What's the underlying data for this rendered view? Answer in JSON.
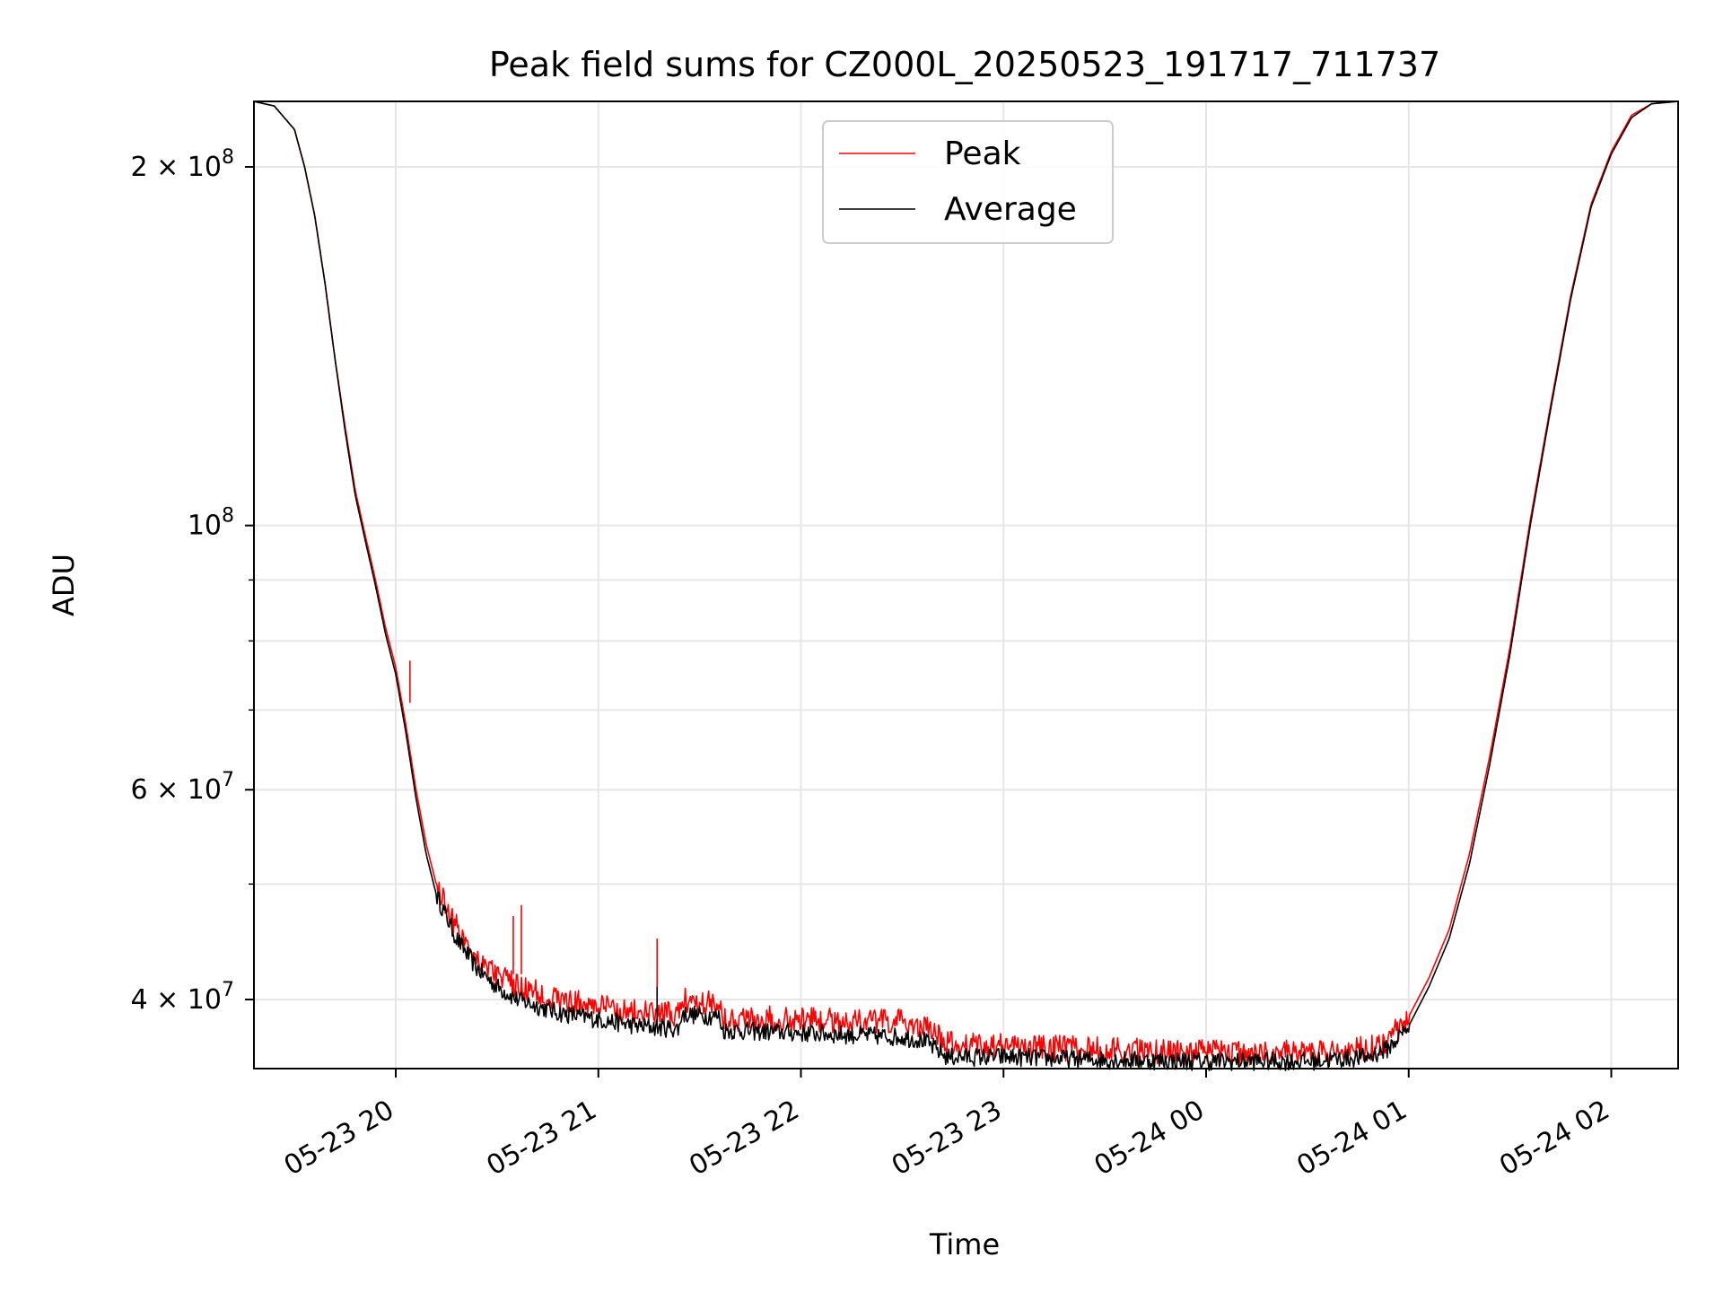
{
  "chart_data": {
    "type": "line",
    "title": "Peak field sums for CZ000L_20250523_191717_711737",
    "xlabel": "Time",
    "ylabel": "ADU",
    "yscale": "log",
    "ylim": [
      35000000,
      227000000
    ],
    "xlim_hours": [
      -0.7,
      6.33
    ],
    "x_ticks": [
      {
        "hour": 0,
        "label": "05-23 20"
      },
      {
        "hour": 1,
        "label": "05-23 21"
      },
      {
        "hour": 2,
        "label": "05-23 22"
      },
      {
        "hour": 3,
        "label": "05-23 23"
      },
      {
        "hour": 4,
        "label": "05-24 00"
      },
      {
        "hour": 5,
        "label": "05-24 01"
      },
      {
        "hour": 6,
        "label": "05-24 02"
      }
    ],
    "y_major_ticks": [
      {
        "value": 40000000,
        "label": "4 × 10",
        "exp": "7"
      },
      {
        "value": 60000000,
        "label": "6 × 10",
        "exp": "7"
      },
      {
        "value": 100000000,
        "label": "10",
        "exp": "8"
      },
      {
        "value": 200000000,
        "label": "2 × 10",
        "exp": "8"
      }
    ],
    "y_minor_ticks": [
      50000000,
      70000000,
      80000000,
      90000000
    ],
    "grid": true,
    "legend_position": "top-center",
    "series": [
      {
        "name": "Average",
        "color": "#000000",
        "x": [
          -0.7,
          -0.6,
          -0.5,
          -0.45,
          -0.4,
          -0.35,
          -0.3,
          -0.25,
          -0.2,
          -0.15,
          -0.1,
          -0.05,
          0.0,
          0.05,
          0.1,
          0.15,
          0.2,
          0.3,
          0.4,
          0.5,
          0.6,
          0.7,
          0.8,
          1.0,
          1.2,
          1.4,
          1.41,
          1.6,
          1.61,
          2.0,
          2.5,
          2.6,
          2.7,
          2.72,
          3.0,
          3.5,
          4.0,
          4.5,
          4.8,
          4.9,
          5.0,
          5.1,
          5.2,
          5.3,
          5.4,
          5.5,
          5.6,
          5.7,
          5.8,
          5.9,
          6.0,
          6.1,
          6.2,
          6.33
        ],
        "values": [
          227000000,
          225000000,
          215000000,
          200000000,
          182000000,
          160000000,
          138000000,
          120000000,
          106000000,
          97000000,
          89000000,
          81000000,
          75000000,
          67000000,
          59000000,
          53000000,
          49000000,
          45000000,
          42500000,
          41000000,
          40000000,
          39500000,
          39000000,
          38500000,
          38000000,
          37800000,
          38900000,
          38700000,
          37700000,
          37500000,
          37200000,
          37000000,
          36000000,
          35800000,
          35800000,
          35600000,
          35500000,
          35500000,
          35800000,
          36400000,
          38000000,
          41000000,
          45000000,
          52000000,
          63000000,
          78000000,
          100000000,
          125000000,
          155000000,
          185000000,
          205000000,
          220000000,
          226000000,
          227000000
        ]
      },
      {
        "name": "Peak",
        "color": "#ff0000",
        "x": [
          -0.7,
          -0.6,
          -0.5,
          -0.45,
          -0.4,
          -0.35,
          -0.3,
          -0.25,
          -0.2,
          -0.15,
          -0.1,
          -0.05,
          0.0,
          0.05,
          0.1,
          0.15,
          0.2,
          0.3,
          0.4,
          0.5,
          0.6,
          0.7,
          0.8,
          1.0,
          1.2,
          1.4,
          1.41,
          1.6,
          1.61,
          2.0,
          2.5,
          2.6,
          2.7,
          2.72,
          3.0,
          3.5,
          4.0,
          4.5,
          4.8,
          4.9,
          5.0,
          5.1,
          5.2,
          5.3,
          5.4,
          5.5,
          5.6,
          5.7,
          5.8,
          5.9,
          6.0,
          6.1,
          6.2,
          6.33
        ],
        "values": [
          227000000,
          225000000,
          215000000,
          200000000,
          182000000,
          160000000,
          138000000,
          121000000,
          107000000,
          98000000,
          90000000,
          82000000,
          76000000,
          68000000,
          60000000,
          54000000,
          50000000,
          46000000,
          43500000,
          42000000,
          41000000,
          40500000,
          40000000,
          39500000,
          39000000,
          38800000,
          40000000,
          39800000,
          38600000,
          38500000,
          38300000,
          38000000,
          37000000,
          36700000,
          36600000,
          36300000,
          36100000,
          36100000,
          36400000,
          37000000,
          38700000,
          41700000,
          45800000,
          53000000,
          64000000,
          79000000,
          101000000,
          126000000,
          156000000,
          186000000,
          206000000,
          221000000,
          226000000,
          227000000
        ]
      }
    ],
    "spikes": [
      {
        "series": "Peak",
        "hour": 0.07,
        "value": 77000000,
        "base": 71000000
      },
      {
        "series": "Peak",
        "hour": 0.58,
        "value": 47000000,
        "base": 42000000
      },
      {
        "series": "Peak",
        "hour": 0.62,
        "value": 48000000,
        "base": 42000000
      },
      {
        "series": "Peak",
        "hour": 1.29,
        "value": 45000000,
        "base": 38500000
      },
      {
        "series": "Average",
        "hour": 1.29,
        "value": 41000000,
        "base": 38000000
      }
    ]
  }
}
